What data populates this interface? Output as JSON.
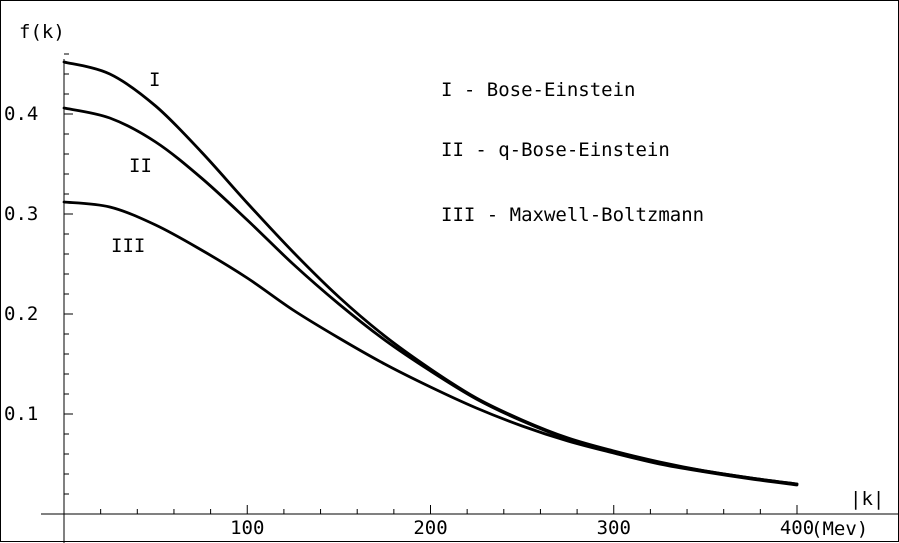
{
  "chart_data": {
    "type": "line",
    "ylabel": "f(k)",
    "xlabel_top": "|k|",
    "xlabel_bottom": "(Mev)",
    "xlim": [
      0,
      400
    ],
    "ylim": [
      0,
      0.46
    ],
    "x_ticks": [
      100,
      200,
      300,
      400
    ],
    "x_tick_labels": [
      "100",
      "200",
      "300",
      "400"
    ],
    "y_ticks": [
      0.1,
      0.2,
      0.3,
      0.4
    ],
    "y_tick_labels": [
      "0.1",
      "0.2",
      "0.3",
      "0.4"
    ],
    "grid": false,
    "legend": [
      "I - Bose-Einstein",
      "II - q-Bose-Einstein",
      "III - Maxwell-Boltzmann"
    ],
    "series": [
      {
        "name": "I",
        "x": [
          0,
          25,
          50,
          75,
          100,
          125,
          150,
          175,
          200,
          225,
          250,
          275,
          300,
          325,
          350,
          375,
          400
        ],
        "y": [
          0.452,
          0.44,
          0.408,
          0.362,
          0.311,
          0.262,
          0.217,
          0.178,
          0.145,
          0.116,
          0.094,
          0.076,
          0.063,
          0.052,
          0.043,
          0.036,
          0.03
        ]
      },
      {
        "name": "II",
        "x": [
          0,
          25,
          50,
          75,
          100,
          125,
          150,
          175,
          200,
          225,
          250,
          275,
          300,
          325,
          350,
          375,
          400
        ],
        "y": [
          0.406,
          0.396,
          0.372,
          0.336,
          0.294,
          0.25,
          0.21,
          0.174,
          0.143,
          0.115,
          0.093,
          0.075,
          0.062,
          0.051,
          0.043,
          0.036,
          0.03
        ]
      },
      {
        "name": "III",
        "x": [
          0,
          25,
          50,
          75,
          100,
          125,
          150,
          175,
          200,
          225,
          250,
          275,
          300,
          325,
          350,
          375,
          400
        ],
        "y": [
          0.312,
          0.307,
          0.289,
          0.264,
          0.236,
          0.204,
          0.176,
          0.15,
          0.127,
          0.106,
          0.088,
          0.073,
          0.061,
          0.05,
          0.042,
          0.035,
          0.029
        ]
      }
    ],
    "curve_labels": [
      "I",
      "II",
      "III"
    ]
  }
}
